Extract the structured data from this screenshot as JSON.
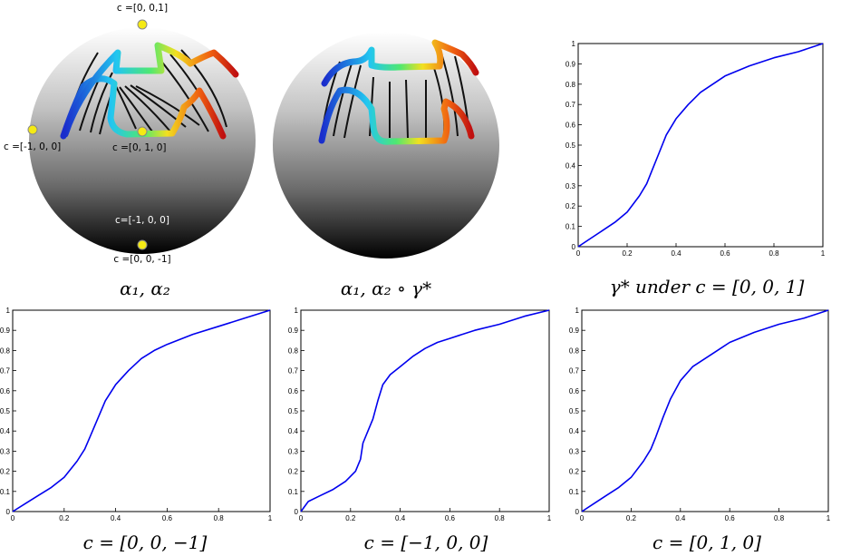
{
  "panels": {
    "sphere_left": {
      "caption": "α₁, α₂",
      "labels": {
        "top": "c =[0, 0,1]",
        "left": "c =[-1, 0, 0]",
        "center": "c =[0, 1, 0]",
        "bottom_inner": "c=[-1, 0, 0]",
        "bottom": "c =[0, 0, -1]"
      }
    },
    "sphere_right": {
      "caption": "α₁, α₂ ∘ γ*"
    }
  },
  "chart_data": [
    {
      "type": "line",
      "caption": "γ* under c = [0, 0, 1]",
      "xlim": [
        0,
        1
      ],
      "ylim": [
        0,
        1
      ],
      "xticks": [
        "0",
        "0.2",
        "0.4",
        "0.6",
        "0.8",
        "1"
      ],
      "yticks": [
        "0",
        "0.1",
        "0.2",
        "0.3",
        "0.4",
        "0.5",
        "0.6",
        "0.7",
        "0.8",
        "0.9",
        "1"
      ],
      "series": [
        {
          "color": "#0000ee",
          "x": [
            0,
            0.05,
            0.1,
            0.15,
            0.2,
            0.25,
            0.28,
            0.3,
            0.33,
            0.36,
            0.4,
            0.45,
            0.5,
            0.55,
            0.6,
            0.7,
            0.8,
            0.9,
            1.0
          ],
          "y": [
            0,
            0.04,
            0.08,
            0.12,
            0.17,
            0.25,
            0.31,
            0.37,
            0.46,
            0.55,
            0.63,
            0.7,
            0.76,
            0.8,
            0.84,
            0.89,
            0.93,
            0.96,
            1.0
          ]
        }
      ]
    },
    {
      "type": "line",
      "caption": "c = [0, 0, −1]",
      "xlim": [
        0,
        1
      ],
      "ylim": [
        0,
        1
      ],
      "xticks": [
        "0",
        "0.2",
        "0.4",
        "0.6",
        "0.8",
        "1"
      ],
      "yticks": [
        "0",
        "0.1",
        "0.2",
        "0.3",
        "0.4",
        "0.5",
        "0.6",
        "0.7",
        "0.8",
        "0.9",
        "1"
      ],
      "series": [
        {
          "color": "#0000ee",
          "x": [
            0,
            0.05,
            0.1,
            0.15,
            0.2,
            0.25,
            0.28,
            0.3,
            0.33,
            0.36,
            0.4,
            0.45,
            0.5,
            0.55,
            0.6,
            0.7,
            0.8,
            0.9,
            1.0
          ],
          "y": [
            0,
            0.04,
            0.08,
            0.12,
            0.17,
            0.25,
            0.31,
            0.37,
            0.46,
            0.55,
            0.63,
            0.7,
            0.76,
            0.8,
            0.83,
            0.88,
            0.92,
            0.96,
            1.0
          ]
        }
      ]
    },
    {
      "type": "line",
      "caption": "c = [−1, 0, 0]",
      "xlim": [
        0,
        1
      ],
      "ylim": [
        0,
        1
      ],
      "xticks": [
        "0",
        "0.2",
        "0.4",
        "0.6",
        "0.8",
        "1"
      ],
      "yticks": [
        "0",
        "0.1",
        "0.2",
        "0.3",
        "0.4",
        "0.5",
        "0.6",
        "0.7",
        "0.8",
        "0.9",
        "1"
      ],
      "series": [
        {
          "color": "#0000ee",
          "x": [
            0,
            0.03,
            0.08,
            0.13,
            0.18,
            0.22,
            0.24,
            0.25,
            0.27,
            0.29,
            0.31,
            0.33,
            0.36,
            0.4,
            0.45,
            0.5,
            0.55,
            0.6,
            0.7,
            0.8,
            0.9,
            1.0
          ],
          "y": [
            0,
            0.05,
            0.08,
            0.11,
            0.15,
            0.2,
            0.26,
            0.34,
            0.4,
            0.46,
            0.55,
            0.63,
            0.68,
            0.72,
            0.77,
            0.81,
            0.84,
            0.86,
            0.9,
            0.93,
            0.97,
            1.0
          ]
        }
      ]
    },
    {
      "type": "line",
      "caption": "c = [0, 1, 0]",
      "xlim": [
        0,
        1
      ],
      "ylim": [
        0,
        1
      ],
      "xticks": [
        "0",
        "0.2",
        "0.4",
        "0.6",
        "0.8",
        "1"
      ],
      "yticks": [
        "0",
        "0.1",
        "0.2",
        "0.3",
        "0.4",
        "0.5",
        "0.6",
        "0.7",
        "0.8",
        "0.9",
        "1"
      ],
      "series": [
        {
          "color": "#0000ee",
          "x": [
            0,
            0.05,
            0.1,
            0.15,
            0.2,
            0.25,
            0.28,
            0.3,
            0.33,
            0.36,
            0.4,
            0.45,
            0.5,
            0.55,
            0.6,
            0.7,
            0.8,
            0.9,
            1.0
          ],
          "y": [
            0,
            0.04,
            0.08,
            0.12,
            0.17,
            0.25,
            0.31,
            0.37,
            0.47,
            0.56,
            0.65,
            0.72,
            0.76,
            0.8,
            0.84,
            0.89,
            0.93,
            0.96,
            1.0
          ]
        }
      ]
    }
  ]
}
